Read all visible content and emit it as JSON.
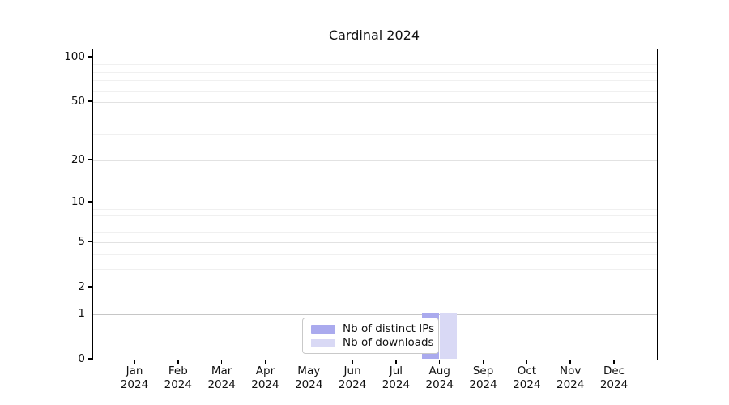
{
  "title": "Cardinal 2024",
  "legend": {
    "items": [
      {
        "label": "Nb of distinct IPs",
        "color": "#aaaaee"
      },
      {
        "label": "Nb of downloads",
        "color": "#d9d9f5"
      }
    ]
  },
  "chart_data": {
    "type": "bar",
    "title": "Cardinal 2024",
    "categories": [
      "Jan 2024",
      "Feb 2024",
      "Mar 2024",
      "Apr 2024",
      "May 2024",
      "Jun 2024",
      "Jul 2024",
      "Aug 2024",
      "Sep 2024",
      "Oct 2024",
      "Nov 2024",
      "Dec 2024"
    ],
    "series": [
      {
        "name": "Nb of distinct IPs",
        "color": "#aaaaee",
        "values": [
          0,
          0,
          0,
          0,
          0,
          0,
          0,
          1,
          0,
          0,
          0,
          0
        ]
      },
      {
        "name": "Nb of downloads",
        "color": "#d9d9f5",
        "values": [
          0,
          0,
          0,
          0,
          0,
          0,
          0,
          1,
          0,
          0,
          0,
          0
        ]
      }
    ],
    "yscale": "log1p",
    "ylim": [
      0,
      113
    ],
    "yticks": [
      0,
      1,
      2,
      5,
      10,
      20,
      50,
      100
    ],
    "yminorticks": [
      3,
      4,
      6,
      7,
      8,
      9,
      30,
      40,
      60,
      70,
      80,
      90
    ],
    "grid": true,
    "legend_position": "bottom-center"
  },
  "colors": {
    "axis": "#000000",
    "grid_decade": "#c6c6c6",
    "grid_major": "#e2e2e2",
    "grid_minor": "#f0f0f0",
    "background": "#ffffff"
  }
}
